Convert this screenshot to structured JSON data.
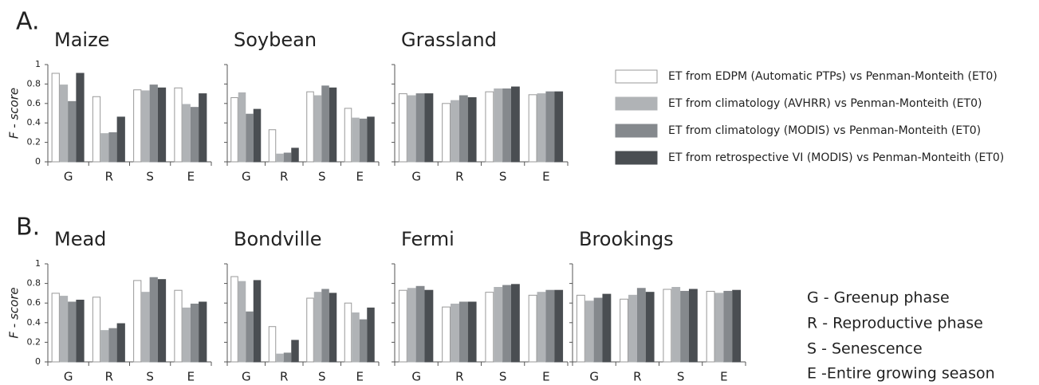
{
  "panel_labels": [
    "A.",
    "B."
  ],
  "key": [
    "G  - Greenup phase",
    "R  - Reproductive phase",
    "S  - Senescence",
    "E  -Entire growing season"
  ],
  "chart_data": [
    {
      "type": "bar",
      "title": "Maize",
      "y_label": "F - score",
      "show_ytick_labels": true,
      "categories": [
        "G",
        "R",
        "S",
        "E"
      ],
      "ylim": [
        0,
        1
      ],
      "yticks": [
        0,
        0.2,
        0.4,
        0.6,
        0.8,
        1
      ],
      "series": [
        {
          "name": "ET from EDPM (Automatic PTPs) vs Penman-Monteith (ET0)",
          "color": "#ffffff",
          "values": [
            0.91,
            0.67,
            0.74,
            0.76
          ]
        },
        {
          "name": "ET from climatology (AVHRR) vs Penman-Monteith (ET0)",
          "color": "#b0b3b6",
          "values": [
            0.79,
            0.29,
            0.73,
            0.59
          ]
        },
        {
          "name": "ET from climatology (MODIS) vs Penman-Monteith (ET0)",
          "color": "#85898d",
          "values": [
            0.62,
            0.3,
            0.79,
            0.56
          ]
        },
        {
          "name": "ET from retrospective VI (MODIS) vs Penman-Monteith (ET0)",
          "color": "#4a4e52",
          "values": [
            0.91,
            0.46,
            0.76,
            0.7
          ]
        }
      ]
    },
    {
      "type": "bar",
      "title": "Soybean",
      "show_ytick_labels": false,
      "categories": [
        "G",
        "R",
        "S",
        "E"
      ],
      "ylim": [
        0,
        1
      ],
      "yticks": [
        0,
        0.2,
        0.4,
        0.6,
        0.8,
        1
      ],
      "series": [
        {
          "color": "#ffffff",
          "values": [
            0.66,
            0.33,
            0.72,
            0.55
          ]
        },
        {
          "color": "#b0b3b6",
          "values": [
            0.71,
            0.08,
            0.68,
            0.45
          ]
        },
        {
          "color": "#85898d",
          "values": [
            0.49,
            0.09,
            0.78,
            0.44
          ]
        },
        {
          "color": "#4a4e52",
          "values": [
            0.54,
            0.14,
            0.76,
            0.46
          ]
        }
      ]
    },
    {
      "type": "bar",
      "title": "Grassland",
      "show_ytick_labels": false,
      "categories": [
        "G",
        "R",
        "S",
        "E"
      ],
      "ylim": [
        0,
        1
      ],
      "yticks": [
        0,
        0.2,
        0.4,
        0.6,
        0.8,
        1
      ],
      "series": [
        {
          "color": "#ffffff",
          "values": [
            0.7,
            0.6,
            0.72,
            0.69
          ]
        },
        {
          "color": "#b0b3b6",
          "values": [
            0.68,
            0.63,
            0.75,
            0.7
          ]
        },
        {
          "color": "#85898d",
          "values": [
            0.7,
            0.68,
            0.75,
            0.72
          ]
        },
        {
          "color": "#4a4e52",
          "values": [
            0.7,
            0.66,
            0.77,
            0.72
          ]
        }
      ]
    },
    {
      "type": "bar",
      "title": "Mead",
      "y_label": "F - score",
      "show_ytick_labels": true,
      "categories": [
        "G",
        "R",
        "S",
        "E"
      ],
      "ylim": [
        0,
        1
      ],
      "yticks": [
        0,
        0.2,
        0.4,
        0.6,
        0.8,
        1
      ],
      "series": [
        {
          "color": "#ffffff",
          "values": [
            0.7,
            0.66,
            0.83,
            0.73
          ]
        },
        {
          "color": "#b0b3b6",
          "values": [
            0.67,
            0.32,
            0.71,
            0.55
          ]
        },
        {
          "color": "#85898d",
          "values": [
            0.61,
            0.34,
            0.86,
            0.59
          ]
        },
        {
          "color": "#4a4e52",
          "values": [
            0.63,
            0.39,
            0.84,
            0.61
          ]
        }
      ]
    },
    {
      "type": "bar",
      "title": "Bondville",
      "show_ytick_labels": false,
      "categories": [
        "G",
        "R",
        "S",
        "E"
      ],
      "ylim": [
        0,
        1
      ],
      "yticks": [
        0,
        0.2,
        0.4,
        0.6,
        0.8,
        1
      ],
      "series": [
        {
          "color": "#ffffff",
          "values": [
            0.87,
            0.36,
            0.65,
            0.6
          ]
        },
        {
          "color": "#b0b3b6",
          "values": [
            0.82,
            0.08,
            0.71,
            0.5
          ]
        },
        {
          "color": "#85898d",
          "values": [
            0.51,
            0.09,
            0.74,
            0.43
          ]
        },
        {
          "color": "#4a4e52",
          "values": [
            0.83,
            0.22,
            0.7,
            0.55
          ]
        }
      ]
    },
    {
      "type": "bar",
      "title": "Fermi",
      "show_ytick_labels": false,
      "categories": [
        "G",
        "R",
        "S",
        "E"
      ],
      "ylim": [
        0,
        1
      ],
      "yticks": [
        0,
        0.2,
        0.4,
        0.6,
        0.8,
        1
      ],
      "series": [
        {
          "color": "#ffffff",
          "values": [
            0.73,
            0.56,
            0.71,
            0.68
          ]
        },
        {
          "color": "#b0b3b6",
          "values": [
            0.75,
            0.59,
            0.76,
            0.71
          ]
        },
        {
          "color": "#85898d",
          "values": [
            0.77,
            0.61,
            0.78,
            0.73
          ]
        },
        {
          "color": "#4a4e52",
          "values": [
            0.73,
            0.61,
            0.79,
            0.73
          ]
        }
      ]
    },
    {
      "type": "bar",
      "title": "Brookings",
      "show_ytick_labels": false,
      "categories": [
        "G",
        "R",
        "S",
        "E"
      ],
      "ylim": [
        0,
        1
      ],
      "yticks": [
        0,
        0.2,
        0.4,
        0.6,
        0.8,
        1
      ],
      "series": [
        {
          "color": "#ffffff",
          "values": [
            0.68,
            0.64,
            0.74,
            0.72
          ]
        },
        {
          "color": "#b0b3b6",
          "values": [
            0.62,
            0.68,
            0.76,
            0.7
          ]
        },
        {
          "color": "#85898d",
          "values": [
            0.65,
            0.75,
            0.72,
            0.72
          ]
        },
        {
          "color": "#4a4e52",
          "values": [
            0.69,
            0.71,
            0.74,
            0.73
          ]
        }
      ]
    }
  ]
}
